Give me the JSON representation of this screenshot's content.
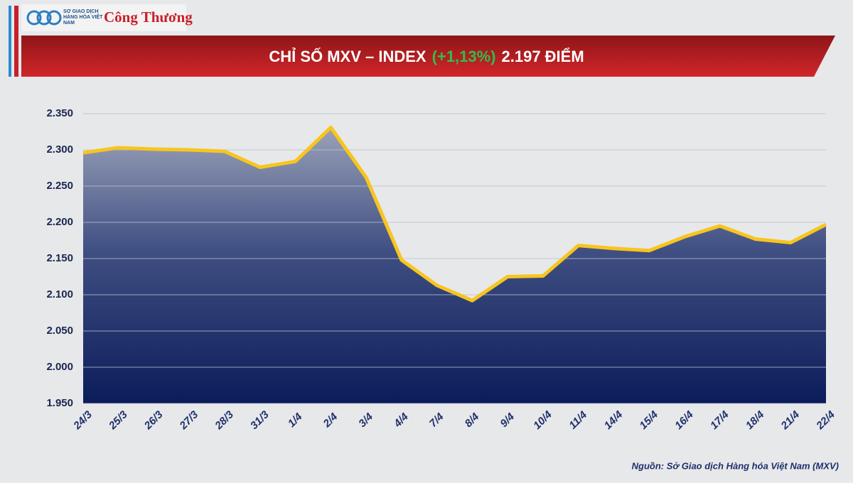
{
  "header": {
    "logo_text": "SỞ GIAO DỊCH HÀNG HÓA VIỆT NAM",
    "brand": "Công Thương"
  },
  "chart_data": {
    "type": "line",
    "title": "CHỈ SỐ MXV – INDEX",
    "title_change": "(+1,13%)",
    "title_value": "2.197 ĐIỂM",
    "categories": [
      "24/3",
      "25/3",
      "26/3",
      "27/3",
      "28/3",
      "31/3",
      "1/4",
      "2/4",
      "3/4",
      "4/4",
      "7/4",
      "8/4",
      "9/4",
      "10/4",
      "11/4",
      "14/4",
      "15/4",
      "16/4",
      "17/4",
      "18/4",
      "21/4",
      "22/4"
    ],
    "series": [
      {
        "name": "MXV-Index",
        "color": "#f7c51e",
        "values": [
          2296,
          2303,
          2301,
          2300,
          2298,
          2276,
          2284,
          2331,
          2262,
          2148,
          2113,
          2092,
          2125,
          2126,
          2168,
          2164,
          2161,
          2180,
          2195,
          2177,
          2172,
          2197
        ]
      }
    ],
    "ylim": [
      1950,
      2350
    ],
    "yticks": [
      {
        "value": 1950,
        "label": "1.950"
      },
      {
        "value": 2000,
        "label": "2.000"
      },
      {
        "value": 2050,
        "label": "2.050"
      },
      {
        "value": 2100,
        "label": "2.100"
      },
      {
        "value": 2150,
        "label": "2.150"
      },
      {
        "value": 2200,
        "label": "2.200"
      },
      {
        "value": 2250,
        "label": "2.250"
      },
      {
        "value": 2300,
        "label": "2.300"
      },
      {
        "value": 2350,
        "label": "2.350"
      }
    ],
    "grid": true,
    "source": "Nguồn: Sở Giao dịch Hàng hóa Việt Nam (MXV)"
  }
}
